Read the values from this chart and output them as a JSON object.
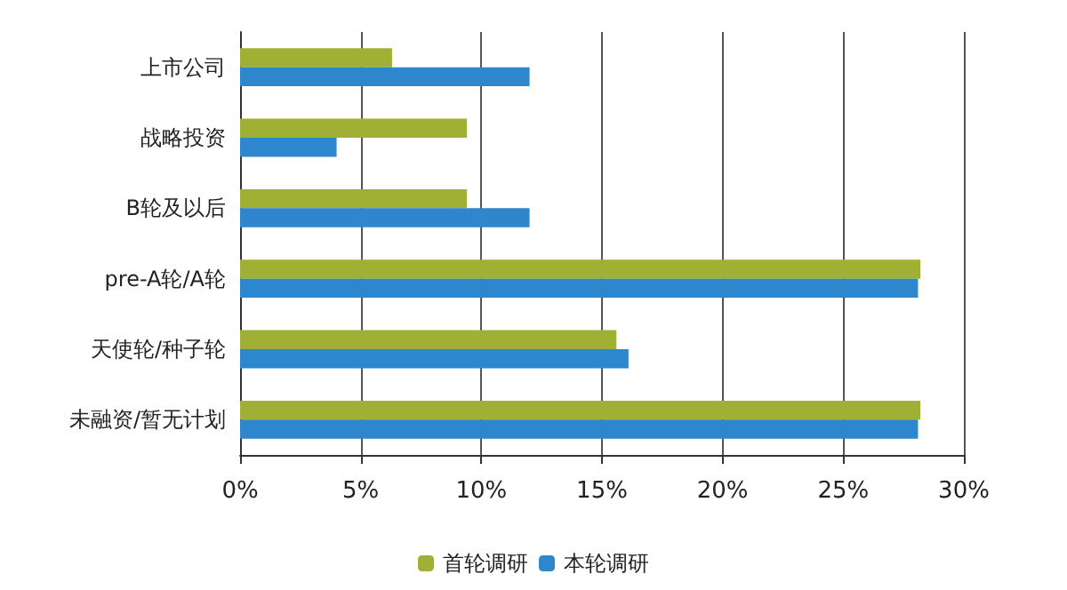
{
  "chart_data": {
    "type": "bar",
    "orientation": "horizontal",
    "categories": [
      "上市公司",
      "战略投资",
      "B轮及以后",
      "pre-A轮/A轮",
      "天使轮/种子轮",
      "未融资/暂无计划"
    ],
    "series": [
      {
        "name": "首轮调研",
        "color": "#a0b034",
        "values": [
          6.3,
          9.4,
          9.4,
          28.2,
          15.6,
          28.2
        ]
      },
      {
        "name": "本轮调研",
        "color": "#2e86cc",
        "values": [
          12.0,
          4.0,
          12.0,
          28.1,
          16.1,
          28.1
        ]
      }
    ],
    "xlim": [
      0,
      30
    ],
    "xticks": [
      {
        "value": 0,
        "label": "0%"
      },
      {
        "value": 5,
        "label": "5%"
      },
      {
        "value": 10,
        "label": "10%"
      },
      {
        "value": 15,
        "label": "15%"
      },
      {
        "value": 20,
        "label": "20%"
      },
      {
        "value": 25,
        "label": "25%"
      },
      {
        "value": 30,
        "label": "30%"
      }
    ],
    "grid": "x",
    "legend": "bottom"
  }
}
